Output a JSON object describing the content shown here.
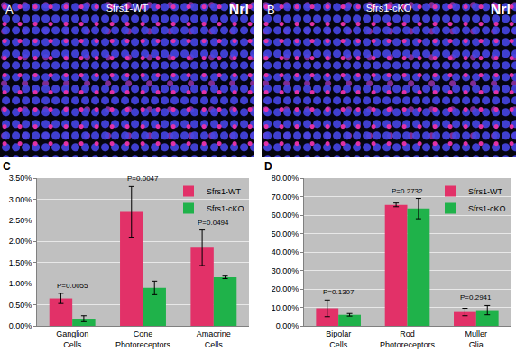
{
  "images": [
    {
      "panel": "A",
      "title": "Sfrs1-WT",
      "label": "Nrl"
    },
    {
      "panel": "B",
      "title": "Sfrs1-cKO",
      "label": "Nrl"
    }
  ],
  "chart_data": [
    {
      "panel": "C",
      "type": "bar",
      "categories": [
        "Ganglion Cells",
        "Cone Photoreceptors",
        "Amacrine Cells"
      ],
      "series": [
        {
          "name": "Sfrs1-WT",
          "color": "#e23168",
          "values": [
            0.65,
            2.7,
            1.85
          ],
          "errors": [
            0.12,
            0.6,
            0.42
          ]
        },
        {
          "name": "Sfrs1-cKO",
          "color": "#1fb24a",
          "values": [
            0.17,
            0.9,
            1.15
          ],
          "errors": [
            0.07,
            0.16,
            0.03
          ]
        }
      ],
      "annotations": [
        "P=0.0055",
        "P=0.0047",
        "P=0.0494"
      ],
      "ylim": [
        0,
        3.5
      ],
      "yticks": [
        {
          "value": 0,
          "label": "0.00%"
        },
        {
          "value": 0.5,
          "label": "0.50%"
        },
        {
          "value": 1,
          "label": "1.00%"
        },
        {
          "value": 1.5,
          "label": "1.50%"
        },
        {
          "value": 2,
          "label": "2.00%"
        },
        {
          "value": 2.5,
          "label": "2.50%"
        },
        {
          "value": 3,
          "label": "3.00%"
        },
        {
          "value": 3.5,
          "label": "3.50%"
        }
      ],
      "grid": true,
      "legend": "upper right"
    },
    {
      "panel": "D",
      "type": "bar",
      "categories": [
        "Bipolar Cells",
        "Rod Photoreceptors",
        "Muller Glia"
      ],
      "series": [
        {
          "name": "Sfrs1-WT",
          "color": "#e23168",
          "values": [
            9.5,
            65.5,
            7.5
          ],
          "errors": [
            4.5,
            1,
            2
          ]
        },
        {
          "name": "Sfrs1-cKO",
          "color": "#1fb24a",
          "values": [
            6,
            63.5,
            8.5
          ],
          "errors": [
            0.7,
            5.5,
            2.5
          ]
        }
      ],
      "annotations": [
        "P=0.1307",
        "P=0.2732",
        "P=0.2941"
      ],
      "ylim": [
        0,
        80
      ],
      "yticks": [
        {
          "value": 0,
          "label": "0.00%"
        },
        {
          "value": 10,
          "label": "10.00%"
        },
        {
          "value": 20,
          "label": "20.00%"
        },
        {
          "value": 30,
          "label": "30.00%"
        },
        {
          "value": 40,
          "label": "40.00%"
        },
        {
          "value": 50,
          "label": "50.00%"
        },
        {
          "value": 60,
          "label": "60.00%"
        },
        {
          "value": 70,
          "label": "70.00%"
        },
        {
          "value": 80,
          "label": "80.00%"
        }
      ],
      "grid": true,
      "legend": "upper right"
    }
  ]
}
